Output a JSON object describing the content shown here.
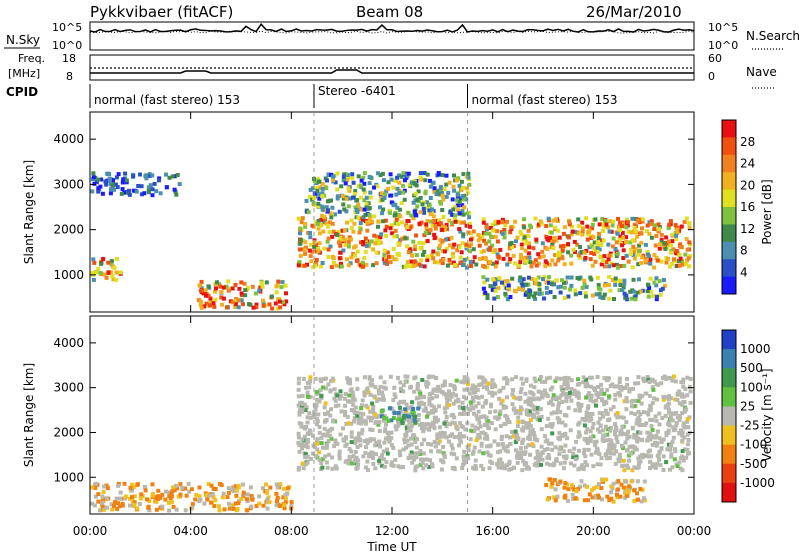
{
  "header": {
    "station": "Pykkvibaer (fitACF)",
    "beam": "Beam 08",
    "date": "26/Mar/2010"
  },
  "strips": {
    "nsky_label": "N.Sky",
    "nsky_ticks": [
      "10^5",
      "10^0"
    ],
    "nsearch_label": "N.Search",
    "nsearch_ticks": [
      "10^5",
      "10^0"
    ],
    "freq_label": "Freq.",
    "freq_unit": "[MHz]",
    "freq_ticks": [
      "18",
      "8"
    ],
    "nave_label": "Nave",
    "nave_ticks": [
      "60",
      "0"
    ],
    "cpid_label": "CPID",
    "cpid_segments": [
      {
        "label": "normal (fast stereo) 153",
        "start": 0,
        "end": 8.9
      },
      {
        "label": "Stereo -6401",
        "start": 8.9,
        "end": 15.0
      },
      {
        "label": "normal (fast stereo) 153",
        "start": 15.0,
        "end": 24
      }
    ]
  },
  "chart_data": [
    {
      "type": "heatmap",
      "panel": "power",
      "ylabel": "Slant Range [km]",
      "xlabel": "Time UT",
      "xlim": [
        0,
        24
      ],
      "ylim": [
        180,
        4600
      ],
      "xticks": [
        "00:00",
        "04:00",
        "08:00",
        "12:00",
        "16:00",
        "20:00",
        "00:00"
      ],
      "yticks": [
        1000,
        2000,
        3000,
        4000
      ],
      "colorbar": {
        "label": "Power [dB]",
        "ticks": [
          "4",
          "8",
          "12",
          "16",
          "20",
          "24",
          "28"
        ],
        "colors": [
          "#1a1aff",
          "#2a50c8",
          "#4a8fb0",
          "#3f8a4a",
          "#80c040",
          "#e0e020",
          "#f0b020",
          "#f08020",
          "#f05010",
          "#e81010"
        ]
      },
      "regions": [
        {
          "x": [
            8.2,
            23.8
          ],
          "y": [
            1200,
            2300
          ],
          "level": "high"
        },
        {
          "x": [
            0,
            1.2
          ],
          "y": [
            900,
            1400
          ],
          "level": "high"
        },
        {
          "x": [
            4.2,
            7.8
          ],
          "y": [
            300,
            900
          ],
          "level": "high"
        },
        {
          "x": [
            8.5,
            15
          ],
          "y": [
            2300,
            3300
          ],
          "level": "medium"
        },
        {
          "x": [
            15.5,
            22.8
          ],
          "y": [
            500,
            1000
          ],
          "level": "medium"
        },
        {
          "x": [
            0,
            3.5
          ],
          "y": [
            2800,
            3300
          ],
          "level": "low"
        }
      ]
    },
    {
      "type": "heatmap",
      "panel": "velocity",
      "ylabel": "Slant Range [km]",
      "xlabel": "Time UT",
      "xlim": [
        0,
        24
      ],
      "ylim": [
        180,
        4600
      ],
      "xticks": [
        "00:00",
        "04:00",
        "08:00",
        "12:00",
        "16:00",
        "20:00",
        "00:00"
      ],
      "yticks": [
        1000,
        2000,
        3000,
        4000
      ],
      "colorbar": {
        "label": "Velocity [m s⁻¹]",
        "ticks": [
          "1000",
          "500",
          "100",
          "25",
          "-25",
          "-100",
          "-500",
          "-1000"
        ],
        "colors": [
          "#2040c8",
          "#3a80b0",
          "#3f9a50",
          "#60c040",
          "#b8b8b0",
          "#f0c020",
          "#f08010",
          "#e84010",
          "#e01010"
        ]
      },
      "regions": [
        {
          "x": [
            8.2,
            23.8
          ],
          "y": [
            1200,
            3300
          ],
          "level": "ground-scatter"
        },
        {
          "x": [
            0,
            8
          ],
          "y": [
            300,
            900
          ],
          "level": "negative"
        },
        {
          "x": [
            11.5,
            13
          ],
          "y": [
            2200,
            2600
          ],
          "level": "positive"
        },
        {
          "x": [
            18,
            22
          ],
          "y": [
            500,
            1000
          ],
          "level": "negative"
        }
      ]
    }
  ],
  "dashed_markers_hours": [
    8.9,
    15.0
  ]
}
